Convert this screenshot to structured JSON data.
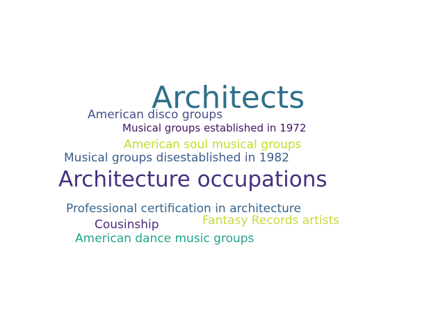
{
  "words": [
    {
      "text": "Architects",
      "color": "#2f6f8a"
    },
    {
      "text": "Architecture occupations",
      "color": "#46307e"
    },
    {
      "text": "American disco groups",
      "color": "#46508a"
    },
    {
      "text": "Musical groups established in 1972",
      "color": "#440f60"
    },
    {
      "text": "American soul musical groups",
      "color": "#bddf26"
    },
    {
      "text": "Musical groups disestablished in 1982",
      "color": "#3b5b8c"
    },
    {
      "text": "Professional certification in architecture",
      "color": "#35658d"
    },
    {
      "text": "Cousinship",
      "color": "#4a2a78"
    },
    {
      "text": "Fantasy Records artists",
      "color": "#c7d93a"
    },
    {
      "text": "American dance music groups",
      "color": "#22a38a"
    }
  ]
}
